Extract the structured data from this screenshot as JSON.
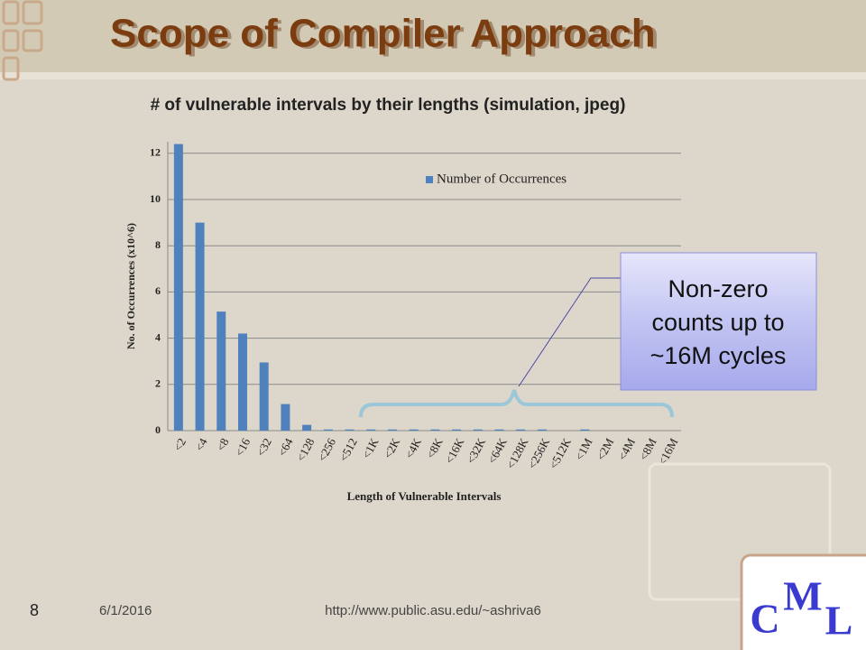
{
  "slide": {
    "title": "Scope of Compiler Approach",
    "callout": [
      "Non-zero",
      "counts up to",
      "~16M cycles"
    ],
    "page_number": "8",
    "date": "6/1/2016",
    "url": "http://www.public.asu.edu/~ashriva6",
    "logo": [
      "C",
      "M",
      "L"
    ]
  },
  "chart_data": {
    "type": "bar",
    "title": "# of vulnerable intervals by their lengths (simulation, jpeg)",
    "x_label": "Length of Vulnerable Intervals",
    "y_label": "No. of Occurrences (x10^6)",
    "categories": [
      "<2",
      "<4",
      "<8",
      "<16",
      "<32",
      "<64",
      "<128",
      "<256",
      "<512",
      "<1K",
      "<2K",
      "<4K",
      "<8K",
      "<16K",
      "<32K",
      "<64K",
      "<128K",
      "<256K",
      "<512K",
      "<1M",
      "<2M",
      "<4M",
      "<8M",
      "<16M"
    ],
    "series": [
      {
        "name": "Number of Occurrences",
        "color": "#4f81bd",
        "values": [
          12.4,
          9.0,
          5.15,
          4.2,
          2.95,
          1.15,
          0.25,
          0.05,
          0.05,
          0.05,
          0.05,
          0.05,
          0.05,
          0.05,
          0.05,
          0.05,
          0.05,
          0.05,
          0,
          0.05,
          0,
          0,
          0,
          0
        ]
      }
    ],
    "ylim": [
      0,
      12.5
    ],
    "yticks": [
      0,
      2,
      4,
      6,
      8,
      10,
      12
    ],
    "grid": true,
    "legend": "top-right"
  }
}
